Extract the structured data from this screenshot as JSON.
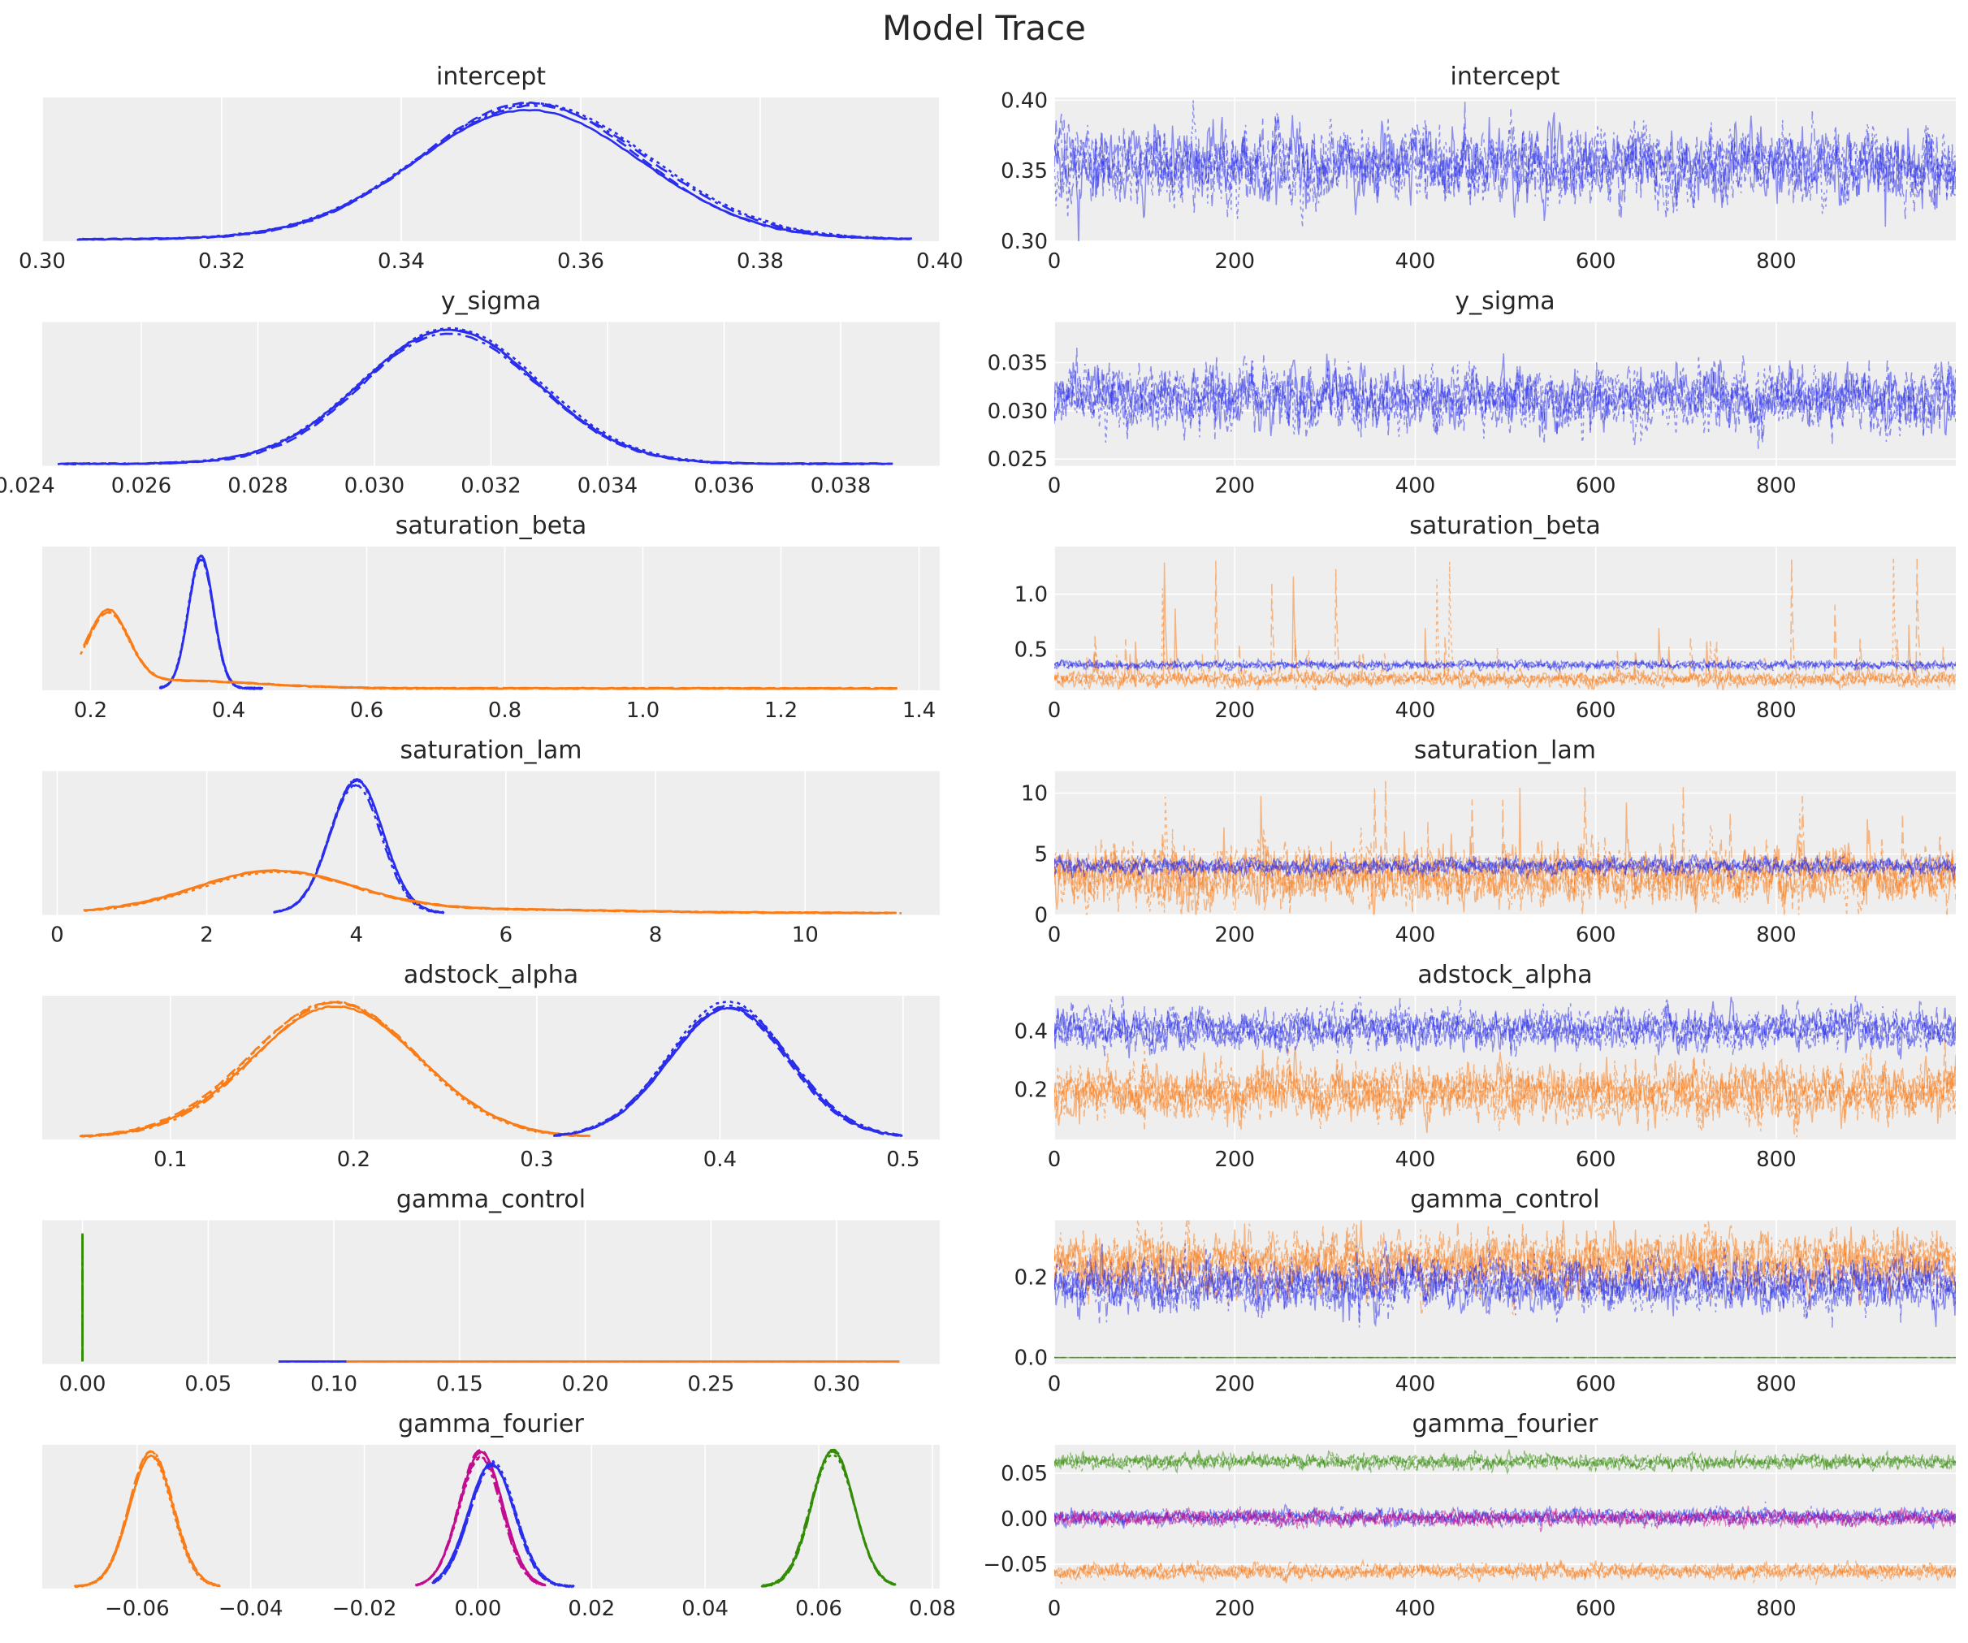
{
  "figure": {
    "title": "Model Trace"
  },
  "colors": {
    "panel_bg": "#eeeeee",
    "grid": "#ffffff",
    "c0": "#2a2eec",
    "c1": "#fa7c17",
    "c2": "#328c06",
    "c3": "#c10c90"
  },
  "chart_data": [
    {
      "type": "line",
      "panel": "density",
      "title": "intercept",
      "xlim": [
        0.3,
        0.4
      ],
      "ylim": [
        0,
        1.08
      ],
      "xticks": [
        0.3,
        0.32,
        0.34,
        0.36,
        0.38,
        0.4
      ],
      "xtick_labels": [
        "0.30",
        "0.32",
        "0.34",
        "0.36",
        "0.38",
        "0.40"
      ],
      "yticks": [],
      "ytick_labels": [],
      "series": [
        {
          "color": "c0",
          "chains": 4,
          "components": [
            {
              "mu": 0.3545,
              "sd": 0.0125,
              "w": 1.0
            }
          ],
          "range": [
            0.304,
            0.398
          ]
        }
      ]
    },
    {
      "type": "line",
      "panel": "trace",
      "title": "intercept",
      "xlim": [
        0,
        999
      ],
      "ylim": [
        0.3,
        0.402
      ],
      "xticks": [
        0,
        200,
        400,
        600,
        800
      ],
      "xtick_labels": [
        "0",
        "200",
        "400",
        "600",
        "800"
      ],
      "yticks": [
        0.3,
        0.35,
        0.4
      ],
      "ytick_labels": [
        "0.30",
        "0.35",
        "0.40"
      ],
      "series": [
        {
          "color": "c0",
          "chains": 4,
          "mu": 0.3545,
          "sd": 0.0125
        }
      ]
    },
    {
      "type": "line",
      "panel": "density",
      "title": "y_sigma",
      "xlim": [
        0.0243,
        0.0397
      ],
      "ylim": [
        0,
        1.08
      ],
      "xticks": [
        0.024,
        0.026,
        0.028,
        0.03,
        0.032,
        0.034,
        0.036,
        0.038
      ],
      "xtick_labels": [
        "0.024",
        "0.026",
        "0.028",
        "0.030",
        "0.032",
        "0.034",
        "0.036",
        "0.038"
      ],
      "yticks": [],
      "ytick_labels": [],
      "series": [
        {
          "color": "c0",
          "chains": 4,
          "components": [
            {
              "mu": 0.0313,
              "sd": 0.0015,
              "w": 1.0
            }
          ],
          "range": [
            0.0246,
            0.0389
          ]
        }
      ]
    },
    {
      "type": "line",
      "panel": "trace",
      "title": "y_sigma",
      "xlim": [
        0,
        999
      ],
      "ylim": [
        0.0243,
        0.0392
      ],
      "xticks": [
        0,
        200,
        400,
        600,
        800
      ],
      "xtick_labels": [
        "0",
        "200",
        "400",
        "600",
        "800"
      ],
      "yticks": [
        0.025,
        0.03,
        0.035
      ],
      "ytick_labels": [
        "0.025",
        "0.030",
        "0.035"
      ],
      "series": [
        {
          "color": "c0",
          "chains": 4,
          "mu": 0.0313,
          "sd": 0.0015
        }
      ]
    },
    {
      "type": "line",
      "panel": "density",
      "title": "saturation_beta",
      "xlim": [
        0.13,
        1.43
      ],
      "ylim": [
        0,
        1.1
      ],
      "xticks": [
        0.2,
        0.4,
        0.6,
        0.8,
        1.0,
        1.2,
        1.4
      ],
      "xtick_labels": [
        "0.2",
        "0.4",
        "0.6",
        "0.8",
        "1.0",
        "1.2",
        "1.4"
      ],
      "yticks": [],
      "ytick_labels": [],
      "series": [
        {
          "color": "c0",
          "chains": 4,
          "components": [
            {
              "mu": 0.36,
              "sd": 0.018,
              "w": 1.0
            }
          ],
          "range": [
            0.3,
            0.45
          ]
        },
        {
          "color": "c1",
          "chains": 4,
          "components": [
            {
              "mu": 0.225,
              "sd": 0.03,
              "w": 0.55
            },
            {
              "mu": 0.32,
              "sd": 0.12,
              "w": 0.06
            }
          ],
          "range": [
            0.19,
            1.38
          ]
        }
      ]
    },
    {
      "type": "line",
      "panel": "trace",
      "title": "saturation_beta",
      "xlim": [
        0,
        999
      ],
      "ylim": [
        0.13,
        1.43
      ],
      "xticks": [
        0,
        200,
        400,
        600,
        800
      ],
      "xtick_labels": [
        "0",
        "200",
        "400",
        "600",
        "800"
      ],
      "yticks": [
        0.5,
        1.0
      ],
      "ytick_labels": [
        "0.5",
        "1.0"
      ],
      "series": [
        {
          "color": "c1",
          "chains": 4,
          "mu": 0.23,
          "sd": 0.03,
          "spikes": 0.02,
          "spike_max": 1.38
        },
        {
          "color": "c0",
          "chains": 4,
          "mu": 0.36,
          "sd": 0.018
        }
      ]
    },
    {
      "type": "line",
      "panel": "density",
      "title": "saturation_lam",
      "xlim": [
        -0.2,
        11.8
      ],
      "ylim": [
        0,
        1.1
      ],
      "xticks": [
        0,
        2,
        4,
        6,
        8,
        10
      ],
      "xtick_labels": [
        "0",
        "2",
        "4",
        "6",
        "8",
        "10"
      ],
      "yticks": [],
      "ytick_labels": [],
      "series": [
        {
          "color": "c0",
          "chains": 4,
          "components": [
            {
              "mu": 4.0,
              "sd": 0.35,
              "w": 1.0
            }
          ],
          "range": [
            2.9,
            5.2
          ]
        },
        {
          "color": "c1",
          "chains": 4,
          "components": [
            {
              "mu": 2.9,
              "sd": 1.05,
              "w": 0.3
            },
            {
              "mu": 5.0,
              "sd": 2.2,
              "w": 0.03
            }
          ],
          "range": [
            0.4,
            11.3
          ]
        }
      ]
    },
    {
      "type": "line",
      "panel": "trace",
      "title": "saturation_lam",
      "xlim": [
        0,
        999
      ],
      "ylim": [
        0,
        11.8
      ],
      "xticks": [
        0,
        200,
        400,
        600,
        800
      ],
      "xtick_labels": [
        "0",
        "200",
        "400",
        "600",
        "800"
      ],
      "yticks": [
        0,
        5,
        10
      ],
      "ytick_labels": [
        "0",
        "5",
        "10"
      ],
      "series": [
        {
          "color": "c1",
          "chains": 4,
          "mu": 3.1,
          "sd": 1.1,
          "spikes": 0.03,
          "spike_max": 11.2
        },
        {
          "color": "c0",
          "chains": 4,
          "mu": 4.0,
          "sd": 0.35
        }
      ]
    },
    {
      "type": "line",
      "panel": "density",
      "title": "adstock_alpha",
      "xlim": [
        0.03,
        0.52
      ],
      "ylim": [
        0,
        1.08
      ],
      "xticks": [
        0.1,
        0.2,
        0.3,
        0.4,
        0.5
      ],
      "xtick_labels": [
        "0.1",
        "0.2",
        "0.3",
        "0.4",
        "0.5"
      ],
      "yticks": [],
      "ytick_labels": [],
      "series": [
        {
          "color": "c1",
          "chains": 4,
          "components": [
            {
              "mu": 0.19,
              "sd": 0.045,
              "w": 1.0
            }
          ],
          "range": [
            0.05,
            0.33
          ]
        },
        {
          "color": "c0",
          "chains": 4,
          "components": [
            {
              "mu": 0.405,
              "sd": 0.033,
              "w": 1.0
            }
          ],
          "range": [
            0.31,
            0.5
          ]
        }
      ]
    },
    {
      "type": "line",
      "panel": "trace",
      "title": "adstock_alpha",
      "xlim": [
        0,
        999
      ],
      "ylim": [
        0.03,
        0.52
      ],
      "xticks": [
        0,
        200,
        400,
        600,
        800
      ],
      "xtick_labels": [
        "0",
        "200",
        "400",
        "600",
        "800"
      ],
      "yticks": [
        0.2,
        0.4
      ],
      "ytick_labels": [
        "0.2",
        "0.4"
      ],
      "series": [
        {
          "color": "c1",
          "chains": 4,
          "mu": 0.19,
          "sd": 0.045
        },
        {
          "color": "c0",
          "chains": 4,
          "mu": 0.405,
          "sd": 0.033
        }
      ]
    },
    {
      "type": "line",
      "panel": "density",
      "title": "gamma_control",
      "xlim": [
        -0.016,
        0.341
      ],
      "ylim": [
        0,
        1.1
      ],
      "xticks": [
        0.0,
        0.05,
        0.1,
        0.15,
        0.2,
        0.25,
        0.3
      ],
      "xtick_labels": [
        "0.00",
        "0.05",
        "0.10",
        "0.15",
        "0.20",
        "0.25",
        "0.30"
      ],
      "yticks": [],
      "ytick_labels": [],
      "series": [
        {
          "color": "c2",
          "chains": 4,
          "spike_at": 0.0
        },
        {
          "color": "c0",
          "chains": 4,
          "flat": [
            0.078,
            0.105
          ]
        },
        {
          "color": "c1",
          "chains": 4,
          "flat": [
            0.105,
            0.325
          ]
        }
      ]
    },
    {
      "type": "line",
      "panel": "trace",
      "title": "gamma_control",
      "xlim": [
        0,
        999
      ],
      "ylim": [
        -0.016,
        0.341
      ],
      "xticks": [
        0,
        200,
        400,
        600,
        800
      ],
      "xtick_labels": [
        "0",
        "200",
        "400",
        "600",
        "800"
      ],
      "yticks": [
        0.0,
        0.2
      ],
      "ytick_labels": [
        "0.0",
        "0.2"
      ],
      "series": [
        {
          "color": "c2",
          "chains": 4,
          "mu": 0.0,
          "sd": 0.0
        },
        {
          "color": "c1",
          "chains": 4,
          "mu": 0.235,
          "sd": 0.035
        },
        {
          "color": "c0",
          "chains": 4,
          "mu": 0.18,
          "sd": 0.03
        }
      ]
    },
    {
      "type": "line",
      "panel": "density",
      "title": "gamma_fourier",
      "xlim": [
        -0.0767,
        0.0813
      ],
      "ylim": [
        0,
        1.08
      ],
      "xticks": [
        -0.06,
        -0.04,
        -0.02,
        0.0,
        0.02,
        0.04,
        0.06,
        0.08
      ],
      "xtick_labels": [
        "−0.06",
        "−0.04",
        "−0.02",
        "0.00",
        "0.02",
        "0.04",
        "0.06",
        "0.08"
      ],
      "yticks": [],
      "ytick_labels": [],
      "series": [
        {
          "color": "c1",
          "chains": 4,
          "components": [
            {
              "mu": -0.0575,
              "sd": 0.0038,
              "w": 1.0
            }
          ],
          "range": [
            -0.071,
            -0.045
          ]
        },
        {
          "color": "c3",
          "chains": 4,
          "components": [
            {
              "mu": 0.0005,
              "sd": 0.0038,
              "w": 1.0
            }
          ],
          "range": [
            -0.011,
            0.012
          ]
        },
        {
          "color": "c0",
          "chains": 4,
          "components": [
            {
              "mu": 0.0025,
              "sd": 0.004,
              "w": 0.92
            }
          ],
          "range": [
            -0.008,
            0.017
          ]
        },
        {
          "color": "c2",
          "chains": 4,
          "components": [
            {
              "mu": 0.0625,
              "sd": 0.0038,
              "w": 1.0
            }
          ],
          "range": [
            0.05,
            0.074
          ]
        }
      ]
    },
    {
      "type": "line",
      "panel": "trace",
      "title": "gamma_fourier",
      "xlim": [
        0,
        999
      ],
      "ylim": [
        -0.0767,
        0.0813
      ],
      "xticks": [
        0,
        200,
        400,
        600,
        800
      ],
      "xtick_labels": [
        "0",
        "200",
        "400",
        "600",
        "800"
      ],
      "yticks": [
        -0.05,
        0.0,
        0.05
      ],
      "ytick_labels": [
        "−0.05",
        "0.00",
        "0.05"
      ],
      "series": [
        {
          "color": "c2",
          "chains": 4,
          "mu": 0.0625,
          "sd": 0.0038
        },
        {
          "color": "c0",
          "chains": 4,
          "mu": 0.0025,
          "sd": 0.004
        },
        {
          "color": "c3",
          "chains": 4,
          "mu": 0.0005,
          "sd": 0.0038
        },
        {
          "color": "c1",
          "chains": 4,
          "mu": -0.0575,
          "sd": 0.0038
        }
      ]
    }
  ]
}
